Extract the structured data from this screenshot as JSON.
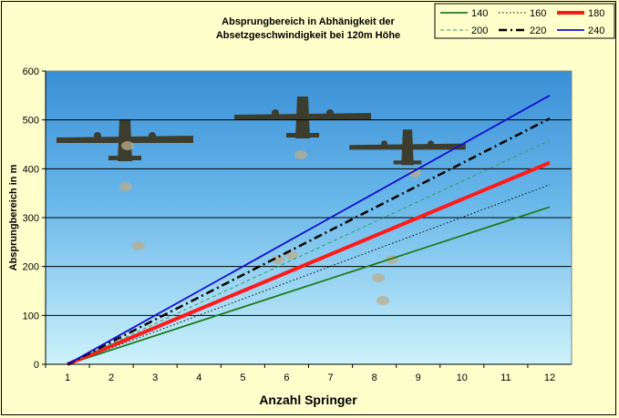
{
  "chart_data": {
    "type": "line",
    "title_line1": "Absprungbereich in Abhänigkeit der",
    "title_line2": "Absetzgeschwindigkeit bei 120m Höhe",
    "xlabel": "Anzahl Springer",
    "ylabel": "Absprungbereich in m",
    "x": [
      1,
      2,
      3,
      4,
      5,
      6,
      7,
      8,
      9,
      10,
      11,
      12
    ],
    "xlim": [
      0.5,
      12.5
    ],
    "ylim": [
      0,
      600
    ],
    "yticks": [
      0,
      100,
      200,
      300,
      400,
      500,
      600
    ],
    "grid": true,
    "legend_position": "top-right",
    "series": [
      {
        "name": "140",
        "color": "#1e7b1e",
        "style": "solid",
        "values": [
          0,
          29.3,
          58.5,
          87.8,
          117,
          146.3,
          175.5,
          204.8,
          234,
          263.3,
          292.5,
          321.8
        ]
      },
      {
        "name": "160",
        "color": "#000000",
        "style": "dotted",
        "values": [
          0,
          33.4,
          66.8,
          100.2,
          133.6,
          167,
          200.4,
          233.8,
          267.2,
          300.6,
          334,
          367.4
        ]
      },
      {
        "name": "180",
        "color": "#ff1a1a",
        "style": "thick",
        "values": [
          0,
          37.5,
          75,
          112.5,
          150,
          187.5,
          225,
          262.5,
          300,
          337.5,
          375,
          412.5
        ]
      },
      {
        "name": "200",
        "color": "#2e9e5e",
        "style": "dashed",
        "values": [
          0,
          41.6,
          83.2,
          124.8,
          166.4,
          208,
          249.6,
          291.2,
          332.8,
          374.4,
          416,
          457.6
        ]
      },
      {
        "name": "220",
        "color": "#000000",
        "style": "dashdot",
        "values": [
          0,
          45.7,
          91.4,
          137.1,
          182.8,
          228.5,
          274.2,
          319.9,
          365.6,
          411.3,
          457,
          502.7
        ]
      },
      {
        "name": "240",
        "color": "#1010d0",
        "style": "solid",
        "values": [
          0,
          50,
          100,
          150,
          200,
          250,
          300,
          350,
          400,
          450,
          500,
          550
        ]
      }
    ]
  }
}
